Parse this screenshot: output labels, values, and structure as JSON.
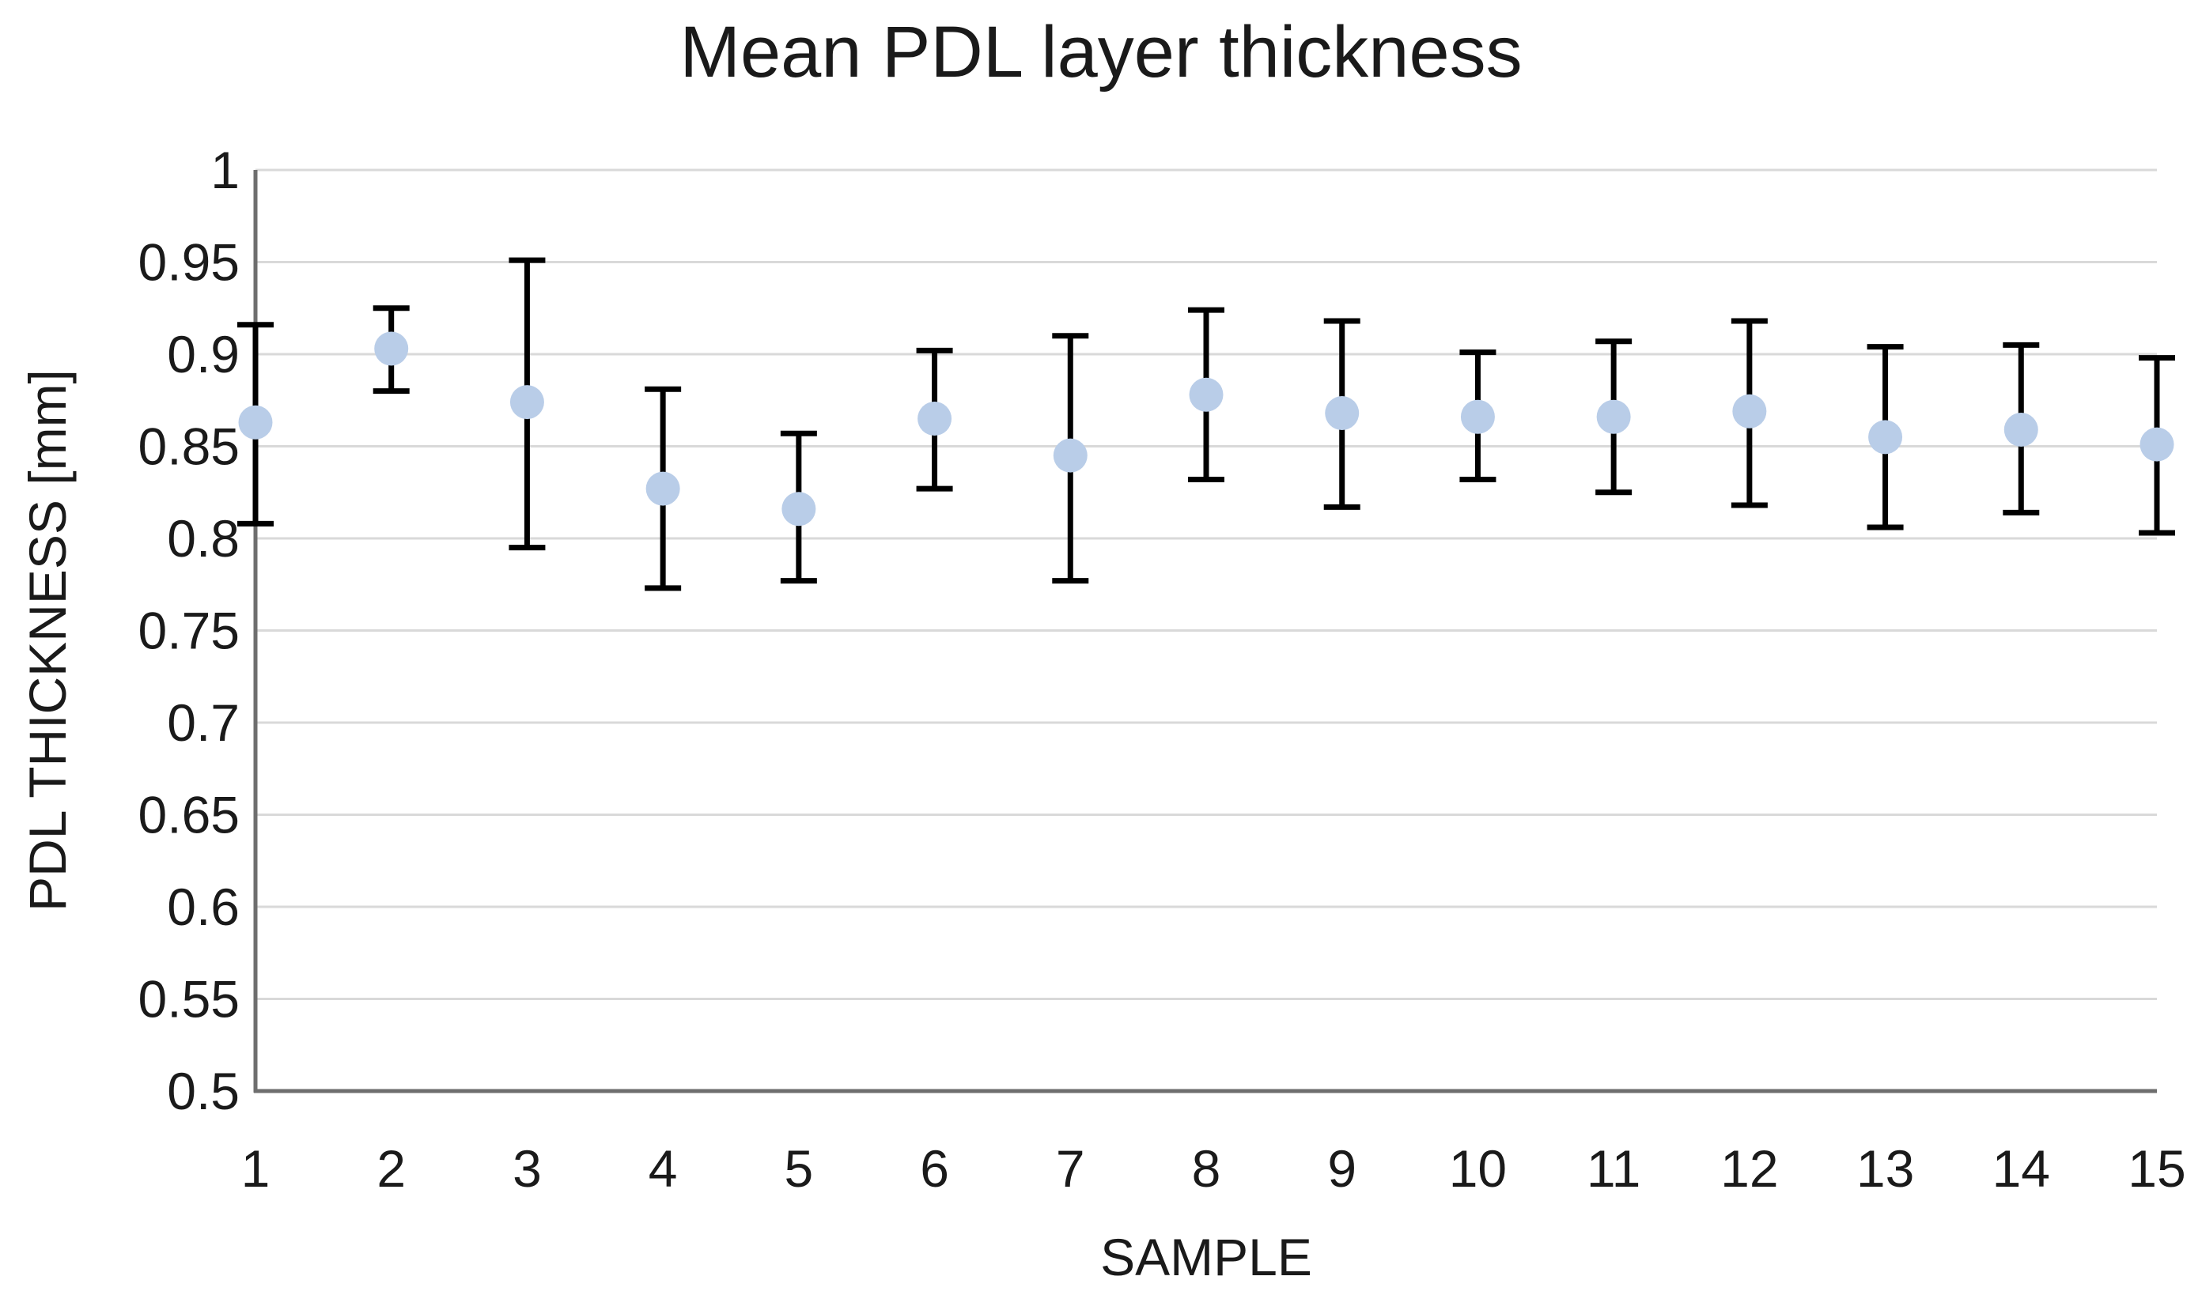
{
  "page": {
    "background": "#ffffff"
  },
  "chart_data": {
    "type": "scatter",
    "title": "Mean PDL layer thickness",
    "xlabel": "SAMPLE",
    "ylabel": "PDL THICKNESS [mm]",
    "x": [
      1,
      2,
      3,
      4,
      5,
      6,
      7,
      8,
      9,
      10,
      11,
      12,
      13,
      14,
      15
    ],
    "x_tick_labels": [
      "1",
      "2",
      "3",
      "4",
      "5",
      "6",
      "7",
      "8",
      "9",
      "10",
      "11",
      "12",
      "13",
      "14",
      "15"
    ],
    "y_tick_labels": [
      "1",
      "0.95",
      "0.9",
      "0.85",
      "0.8",
      "0.75",
      "0.7",
      "0.65",
      "0.6",
      "0.55",
      "0.5"
    ],
    "ylim": [
      0.5,
      1.0
    ],
    "ytick_step": 0.05,
    "xlim": [
      1,
      15
    ],
    "grid": true,
    "legend": false,
    "series": [
      {
        "name": "Mean PDL layer thickness",
        "marker": "circle",
        "values": [
          0.863,
          0.903,
          0.874,
          0.827,
          0.816,
          0.865,
          0.845,
          0.878,
          0.868,
          0.866,
          0.866,
          0.869,
          0.855,
          0.859,
          0.851
        ],
        "error_upper_abs": [
          0.916,
          0.925,
          0.951,
          0.881,
          0.857,
          0.902,
          0.91,
          0.924,
          0.918,
          0.901,
          0.907,
          0.918,
          0.904,
          0.905,
          0.898
        ],
        "error_lower_abs": [
          0.808,
          0.88,
          0.795,
          0.773,
          0.777,
          0.827,
          0.777,
          0.832,
          0.817,
          0.832,
          0.825,
          0.818,
          0.806,
          0.814,
          0.803
        ]
      }
    ],
    "colors": {
      "marker_fill": "#b9cde8",
      "error_bar": "#000000",
      "gridline": "#d9d9d9",
      "axis_line": "#6e6e6e",
      "text": "#1a1a1a"
    }
  }
}
